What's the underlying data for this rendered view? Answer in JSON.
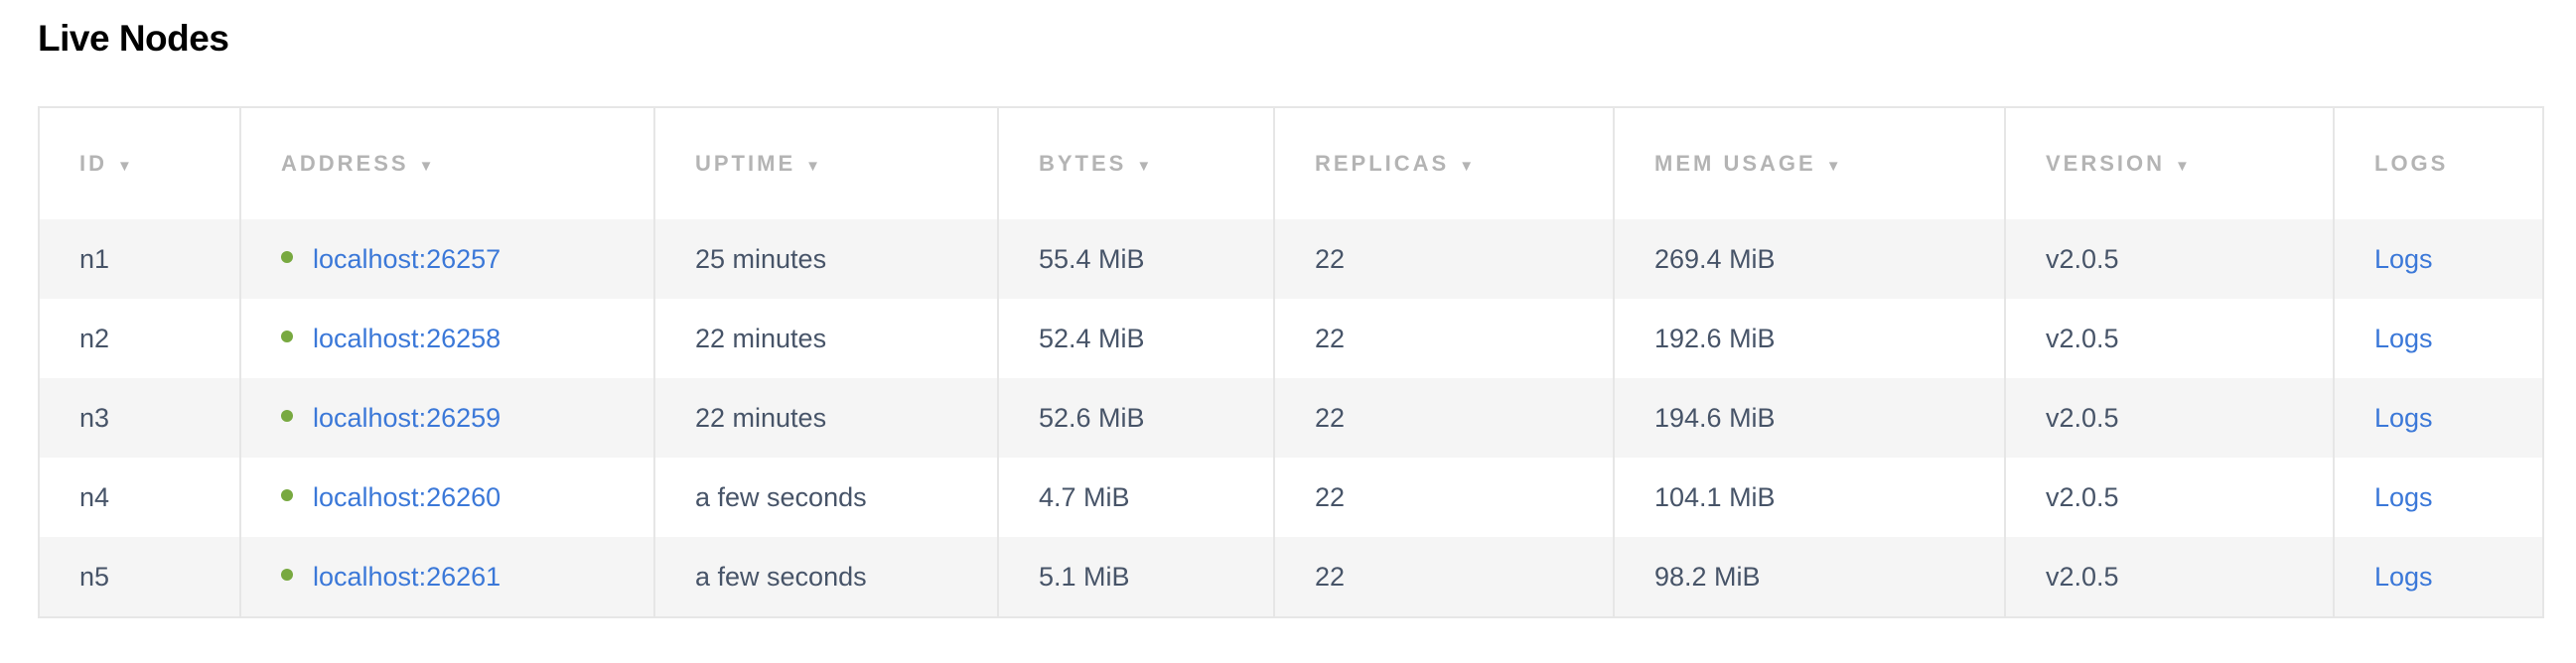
{
  "title": "Live Nodes",
  "columns": [
    {
      "label": "ID",
      "sortable": true
    },
    {
      "label": "ADDRESS",
      "sortable": true
    },
    {
      "label": "UPTIME",
      "sortable": true
    },
    {
      "label": "BYTES",
      "sortable": true
    },
    {
      "label": "REPLICAS",
      "sortable": true
    },
    {
      "label": "MEM USAGE",
      "sortable": true
    },
    {
      "label": "VERSION",
      "sortable": true
    },
    {
      "label": "LOGS",
      "sortable": false
    }
  ],
  "sort_icon": "▼",
  "status_color": "#78a940",
  "link_color": "#3b78d8",
  "rows": [
    {
      "id": "n1",
      "address": "localhost:26257",
      "uptime": "25 minutes",
      "bytes": "55.4 MiB",
      "replicas": "22",
      "mem": "269.4 MiB",
      "version": "v2.0.5",
      "logs": "Logs"
    },
    {
      "id": "n2",
      "address": "localhost:26258",
      "uptime": "22 minutes",
      "bytes": "52.4 MiB",
      "replicas": "22",
      "mem": "192.6 MiB",
      "version": "v2.0.5",
      "logs": "Logs"
    },
    {
      "id": "n3",
      "address": "localhost:26259",
      "uptime": "22 minutes",
      "bytes": "52.6 MiB",
      "replicas": "22",
      "mem": "194.6 MiB",
      "version": "v2.0.5",
      "logs": "Logs"
    },
    {
      "id": "n4",
      "address": "localhost:26260",
      "uptime": "a few seconds",
      "bytes": "4.7 MiB",
      "replicas": "22",
      "mem": "104.1 MiB",
      "version": "v2.0.5",
      "logs": "Logs"
    },
    {
      "id": "n5",
      "address": "localhost:26261",
      "uptime": "a few seconds",
      "bytes": "5.1 MiB",
      "replicas": "22",
      "mem": "98.2 MiB",
      "version": "v2.0.5",
      "logs": "Logs"
    }
  ]
}
